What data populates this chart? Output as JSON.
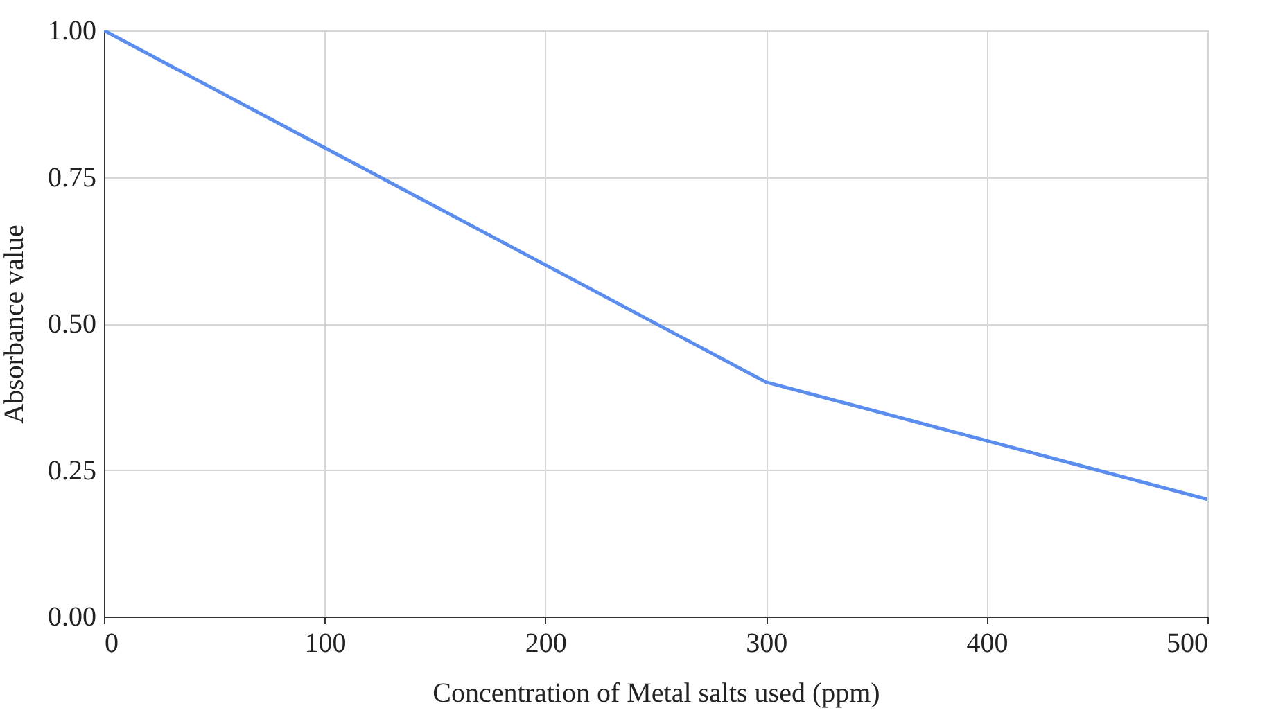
{
  "chart_data": {
    "type": "line",
    "xlabel": "Concentration of Metal salts used (ppm)",
    "ylabel": "Absorbance value",
    "x": [
      0,
      100,
      200,
      300,
      400,
      500
    ],
    "series": [
      {
        "color": "#5b8def",
        "values": [
          1.0,
          0.8,
          0.6,
          0.4,
          0.3,
          0.2
        ]
      }
    ],
    "xlim": [
      0,
      500
    ],
    "xticks": [
      0,
      100,
      200,
      300,
      400,
      500
    ],
    "ylim": [
      0,
      1
    ],
    "yticks": [
      {
        "value": 0,
        "label": "0.00"
      },
      {
        "value": 0.25,
        "label": "0.25"
      },
      {
        "value": 0.5,
        "label": "0.50"
      },
      {
        "value": 0.75,
        "label": "0.75"
      },
      {
        "value": 1,
        "label": "1.00"
      }
    ],
    "grid": true,
    "marker": "none",
    "line_style": "solid"
  }
}
